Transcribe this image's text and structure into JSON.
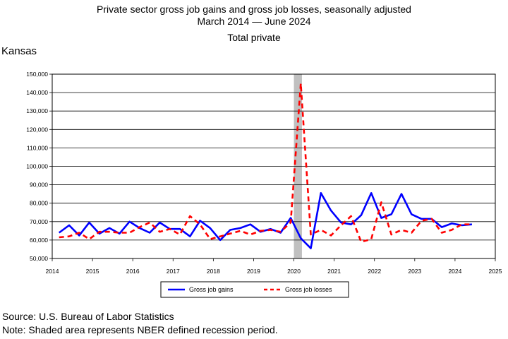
{
  "header": {
    "title_line1": "Private sector gross job gains and gross job losses, seasonally adjusted",
    "title_line2": "March 2014 — June 2024",
    "subtitle": "Total private",
    "region": "Kansas"
  },
  "footer": {
    "source": "Source: U.S. Bureau of Labor Statistics",
    "note": "Note: Shaded area represents NBER defined recession period."
  },
  "chart_data": {
    "type": "line",
    "title": "Private sector gross job gains and gross job losses, seasonally adjusted",
    "subtitle": "Total private",
    "xlim": [
      2014,
      2025
    ],
    "ylim": [
      50000,
      150000
    ],
    "x_ticks": [
      "2014",
      "2015",
      "2016",
      "2017",
      "2018",
      "2019",
      "2020",
      "2021",
      "2022",
      "2023",
      "2024",
      "2025"
    ],
    "y_ticks": [
      "50,000",
      "60,000",
      "70,000",
      "80,000",
      "90,000",
      "100,000",
      "110,000",
      "120,000",
      "130,000",
      "140,000",
      "150,000"
    ],
    "grid": true,
    "legend_position": "bottom",
    "recession_band": [
      2020.0,
      2020.2
    ],
    "recession_color": "#c0c0c0",
    "series": [
      {
        "name": "Gross job gains",
        "color": "#0000ff",
        "style": "solid",
        "x": [
          2014.17,
          2014.42,
          2014.67,
          2014.92,
          2015.17,
          2015.42,
          2015.67,
          2015.92,
          2016.17,
          2016.42,
          2016.67,
          2016.92,
          2017.17,
          2017.42,
          2017.67,
          2017.92,
          2018.17,
          2018.42,
          2018.67,
          2018.92,
          2019.17,
          2019.42,
          2019.67,
          2019.92,
          2020.17,
          2020.42,
          2020.67,
          2020.92,
          2021.17,
          2021.42,
          2021.67,
          2021.92,
          2022.17,
          2022.42,
          2022.67,
          2022.92,
          2023.17,
          2023.42,
          2023.67,
          2023.92,
          2024.17,
          2024.42
        ],
        "values": [
          64000,
          68000,
          62500,
          69500,
          63500,
          66500,
          63500,
          70000,
          66500,
          64000,
          69500,
          66000,
          66000,
          62000,
          70500,
          66500,
          60000,
          65500,
          66500,
          68500,
          64500,
          66000,
          64000,
          72000,
          61000,
          55500,
          85500,
          76000,
          69500,
          68500,
          73500,
          85500,
          72000,
          74000,
          85000,
          74000,
          71500,
          71500,
          67000,
          69000,
          68000,
          68500
        ]
      },
      {
        "name": "Gross job losses",
        "color": "#ff0000",
        "style": "dashed",
        "x": [
          2014.17,
          2014.42,
          2014.67,
          2014.92,
          2015.17,
          2015.42,
          2015.67,
          2015.92,
          2016.17,
          2016.42,
          2016.67,
          2016.92,
          2017.17,
          2017.42,
          2017.67,
          2017.92,
          2018.17,
          2018.42,
          2018.67,
          2018.92,
          2019.17,
          2019.42,
          2019.67,
          2019.92,
          2020.17,
          2020.42,
          2020.67,
          2020.92,
          2021.17,
          2021.42,
          2021.67,
          2021.92,
          2022.17,
          2022.42,
          2022.67,
          2022.92,
          2023.17,
          2023.42,
          2023.67,
          2023.92,
          2024.17,
          2024.42
        ],
        "values": [
          61500,
          62000,
          64000,
          60500,
          64500,
          64500,
          64000,
          64000,
          67000,
          69500,
          64500,
          66000,
          63000,
          73000,
          68500,
          60500,
          62000,
          63500,
          65000,
          63000,
          65000,
          65500,
          64500,
          69500,
          145000,
          63000,
          65500,
          62500,
          68000,
          73000,
          59000,
          60500,
          80500,
          63000,
          65500,
          64000,
          70500,
          71500,
          64000,
          65500,
          68500,
          68500
        ]
      }
    ]
  }
}
